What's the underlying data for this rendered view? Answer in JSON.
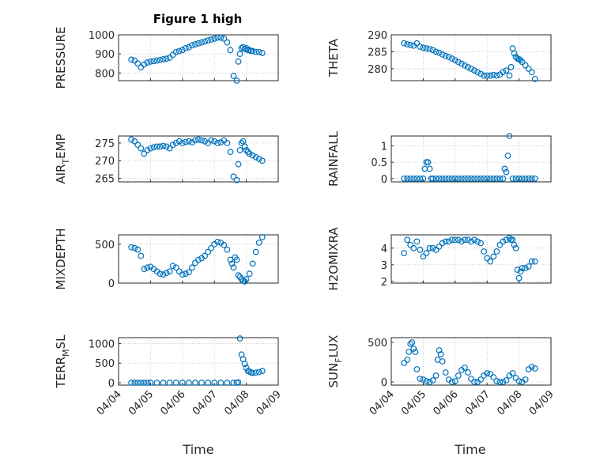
{
  "figure": {
    "title": "Figure 1 high",
    "xlabel": "Time"
  },
  "colors": {
    "marker": "#0072BD",
    "axis": "#262626",
    "grid": "#b0b0b0"
  },
  "x_ticks": [
    "04/04",
    "04/05",
    "04/06",
    "04/07",
    "04/08",
    "04/09"
  ],
  "chart_data": [
    {
      "type": "scatter",
      "ylabel": "PRESSURE",
      "ylim": [
        760,
        1000
      ],
      "yticks": [
        "800",
        "900",
        "1000"
      ],
      "ytick_values": [
        800,
        900,
        1000
      ],
      "grid": true,
      "x": [
        0.4,
        0.5,
        0.6,
        0.7,
        0.8,
        0.9,
        1.0,
        1.1,
        1.2,
        1.3,
        1.4,
        1.5,
        1.6,
        1.7,
        1.8,
        1.9,
        2.0,
        2.1,
        2.2,
        2.3,
        2.4,
        2.5,
        2.6,
        2.7,
        2.8,
        2.9,
        3.0,
        3.1,
        3.2,
        3.3,
        3.4,
        3.5,
        3.6,
        3.7,
        3.75,
        3.8,
        3.85,
        3.9,
        3.95,
        4.0,
        4.05,
        4.1,
        4.15,
        4.2,
        4.3,
        4.4,
        4.5
      ],
      "y": [
        870,
        865,
        850,
        830,
        845,
        855,
        860,
        862,
        865,
        868,
        872,
        875,
        880,
        895,
        910,
        915,
        920,
        930,
        935,
        945,
        950,
        955,
        960,
        965,
        970,
        975,
        980,
        985,
        985,
        980,
        960,
        920,
        785,
        760,
        860,
        900,
        930,
        935,
        925,
        930,
        920,
        920,
        915,
        915,
        910,
        910,
        905
      ]
    },
    {
      "type": "scatter",
      "ylabel": "THETA",
      "ylim": [
        276.5,
        290
      ],
      "yticks": [
        "280",
        "285",
        "290"
      ],
      "ytick_values": [
        280,
        285,
        290
      ],
      "grid": true,
      "x": [
        0.4,
        0.5,
        0.6,
        0.7,
        0.8,
        0.9,
        1.0,
        1.1,
        1.2,
        1.3,
        1.4,
        1.5,
        1.6,
        1.7,
        1.8,
        1.9,
        2.0,
        2.1,
        2.2,
        2.3,
        2.4,
        2.5,
        2.6,
        2.7,
        2.8,
        2.9,
        3.0,
        3.1,
        3.2,
        3.3,
        3.4,
        3.5,
        3.6,
        3.7,
        3.75,
        3.8,
        3.85,
        3.9,
        3.95,
        4.0,
        4.05,
        4.1,
        4.2,
        4.3,
        4.4,
        4.5
      ],
      "y": [
        287.5,
        287.2,
        287.0,
        286.8,
        287.5,
        286.5,
        286.2,
        286.0,
        285.8,
        285.5,
        285.0,
        284.7,
        284.2,
        283.8,
        283.5,
        283.0,
        282.5,
        282.0,
        281.5,
        281.0,
        280.5,
        280.0,
        279.5,
        279.0,
        278.5,
        278.0,
        278.0,
        278.0,
        278.2,
        278.0,
        278.3,
        279.0,
        279.5,
        278.0,
        280.5,
        286.0,
        284.5,
        283.5,
        283.0,
        282.8,
        282.5,
        282.0,
        281.0,
        280.0,
        279.0,
        277.0
      ]
    },
    {
      "type": "scatter",
      "ylabel": "AIR_TEMP",
      "ylim": [
        264,
        277
      ],
      "yticks": [
        "265",
        "270",
        "275"
      ],
      "ytick_values": [
        265,
        270,
        275
      ],
      "grid": true,
      "x": [
        0.4,
        0.5,
        0.6,
        0.7,
        0.8,
        0.9,
        1.0,
        1.1,
        1.2,
        1.3,
        1.4,
        1.5,
        1.6,
        1.7,
        1.8,
        1.9,
        2.0,
        2.1,
        2.2,
        2.3,
        2.4,
        2.5,
        2.6,
        2.7,
        2.8,
        2.9,
        3.0,
        3.1,
        3.2,
        3.3,
        3.4,
        3.5,
        3.6,
        3.7,
        3.75,
        3.8,
        3.85,
        3.9,
        3.95,
        4.0,
        4.05,
        4.1,
        4.2,
        4.3,
        4.4,
        4.5
      ],
      "y": [
        276.0,
        275.5,
        274.5,
        273.5,
        272.0,
        273.0,
        273.5,
        273.8,
        274.0,
        274.0,
        274.2,
        274.0,
        273.5,
        274.5,
        275.0,
        275.5,
        275.0,
        275.3,
        275.5,
        275.2,
        275.8,
        276.0,
        275.8,
        275.5,
        275.0,
        275.8,
        275.5,
        275.0,
        275.2,
        275.8,
        275.0,
        272.5,
        265.5,
        264.5,
        269.0,
        273.0,
        275.0,
        275.5,
        274.0,
        273.0,
        272.5,
        272.0,
        271.5,
        271.0,
        270.5,
        270.0
      ]
    },
    {
      "type": "scatter",
      "ylabel": "RAINFALL",
      "ylim": [
        -0.1,
        1.3
      ],
      "yticks": [
        "0",
        "0.5",
        "1"
      ],
      "ytick_values": [
        0,
        0.5,
        1
      ],
      "grid": true,
      "x": [
        0.4,
        0.5,
        0.6,
        0.7,
        0.8,
        0.9,
        1.0,
        1.05,
        1.1,
        1.15,
        1.2,
        1.25,
        1.3,
        1.4,
        1.5,
        1.6,
        1.7,
        1.8,
        1.9,
        2.0,
        2.1,
        2.2,
        2.3,
        2.4,
        2.5,
        2.6,
        2.7,
        2.8,
        2.9,
        3.0,
        3.1,
        3.2,
        3.3,
        3.4,
        3.5,
        3.55,
        3.6,
        3.65,
        3.7,
        3.8,
        3.9,
        4.0,
        4.1,
        4.2,
        4.3,
        4.4,
        4.5
      ],
      "y": [
        0,
        0,
        0,
        0,
        0,
        0,
        0,
        0.3,
        0.5,
        0.5,
        0.3,
        0,
        0,
        0,
        0,
        0,
        0,
        0,
        0,
        0,
        0,
        0,
        0,
        0,
        0,
        0,
        0,
        0,
        0,
        0,
        0,
        0,
        0,
        0,
        0,
        0.3,
        0.2,
        0.7,
        1.3,
        0,
        0,
        0,
        0,
        0,
        0,
        0,
        0
      ]
    },
    {
      "type": "scatter",
      "ylabel": "MIXDEPTH",
      "ylim": [
        0,
        620
      ],
      "yticks": [
        "0",
        "500"
      ],
      "ytick_values": [
        0,
        500
      ],
      "grid": true,
      "x": [
        0.4,
        0.5,
        0.6,
        0.7,
        0.8,
        0.9,
        1.0,
        1.1,
        1.2,
        1.3,
        1.4,
        1.5,
        1.6,
        1.7,
        1.8,
        1.9,
        2.0,
        2.1,
        2.2,
        2.3,
        2.4,
        2.5,
        2.6,
        2.7,
        2.8,
        2.9,
        3.0,
        3.1,
        3.2,
        3.3,
        3.4,
        3.5,
        3.55,
        3.6,
        3.65,
        3.7,
        3.75,
        3.8,
        3.85,
        3.9,
        3.95,
        4.0,
        4.1,
        4.2,
        4.3,
        4.4,
        4.5
      ],
      "y": [
        460,
        450,
        430,
        350,
        180,
        200,
        210,
        180,
        150,
        120,
        110,
        130,
        150,
        220,
        200,
        150,
        110,
        120,
        140,
        200,
        260,
        300,
        320,
        350,
        400,
        450,
        500,
        530,
        520,
        490,
        430,
        300,
        250,
        200,
        330,
        300,
        100,
        80,
        50,
        30,
        20,
        50,
        120,
        250,
        400,
        520,
        590
      ]
    },
    {
      "type": "scatter",
      "ylabel": "H2OMIXRA",
      "ylim": [
        1.9,
        4.8
      ],
      "yticks": [
        "2",
        "3",
        "4"
      ],
      "ytick_values": [
        2,
        3,
        4
      ],
      "grid": true,
      "x": [
        0.4,
        0.5,
        0.6,
        0.7,
        0.8,
        0.9,
        1.0,
        1.1,
        1.2,
        1.3,
        1.4,
        1.5,
        1.6,
        1.7,
        1.8,
        1.9,
        2.0,
        2.1,
        2.2,
        2.3,
        2.4,
        2.5,
        2.6,
        2.7,
        2.8,
        2.9,
        3.0,
        3.1,
        3.2,
        3.3,
        3.4,
        3.5,
        3.6,
        3.7,
        3.75,
        3.8,
        3.85,
        3.9,
        3.95,
        4.0,
        4.05,
        4.1,
        4.2,
        4.3,
        4.4,
        4.5
      ],
      "y": [
        3.7,
        4.5,
        4.2,
        4.0,
        4.4,
        3.9,
        3.5,
        3.7,
        4.0,
        4.0,
        3.9,
        4.1,
        4.3,
        4.4,
        4.4,
        4.5,
        4.5,
        4.5,
        4.4,
        4.5,
        4.5,
        4.4,
        4.5,
        4.4,
        4.3,
        3.8,
        3.4,
        3.2,
        3.5,
        3.8,
        4.2,
        4.4,
        4.5,
        4.6,
        4.5,
        4.5,
        4.2,
        4.0,
        2.7,
        2.2,
        2.6,
        2.8,
        2.8,
        2.9,
        3.2,
        3.2
      ]
    },
    {
      "type": "scatter",
      "ylabel": "TERR_MSL",
      "ylim": [
        -60,
        1150
      ],
      "yticks": [
        "0",
        "500",
        "1000"
      ],
      "ytick_values": [
        0,
        500,
        1000
      ],
      "grid": true,
      "x": [
        0.4,
        0.5,
        0.6,
        0.7,
        0.8,
        0.9,
        1.0,
        1.2,
        1.4,
        1.6,
        1.8,
        2.0,
        2.2,
        2.4,
        2.6,
        2.8,
        3.0,
        3.2,
        3.4,
        3.6,
        3.7,
        3.75,
        3.8,
        3.85,
        3.9,
        3.95,
        4.0,
        4.05,
        4.1,
        4.15,
        4.2,
        4.3,
        4.4,
        4.5
      ],
      "y": [
        0,
        0,
        0,
        0,
        0,
        0,
        0,
        0,
        0,
        0,
        0,
        0,
        0,
        0,
        0,
        0,
        0,
        0,
        0,
        0,
        0,
        10,
        1130,
        720,
        600,
        480,
        380,
        300,
        280,
        260,
        250,
        260,
        270,
        300
      ]
    },
    {
      "type": "scatter",
      "ylabel": "SUN_FLUX",
      "ylim": [
        -40,
        560
      ],
      "yticks": [
        "0",
        "500"
      ],
      "ytick_values": [
        0,
        500
      ],
      "grid": true,
      "x": [
        0.4,
        0.5,
        0.55,
        0.6,
        0.65,
        0.7,
        0.75,
        0.8,
        0.9,
        1.0,
        1.1,
        1.2,
        1.3,
        1.4,
        1.45,
        1.5,
        1.55,
        1.6,
        1.7,
        1.8,
        1.9,
        2.0,
        2.1,
        2.2,
        2.3,
        2.4,
        2.5,
        2.6,
        2.7,
        2.8,
        2.9,
        3.0,
        3.1,
        3.2,
        3.3,
        3.4,
        3.5,
        3.6,
        3.7,
        3.8,
        3.9,
        4.0,
        4.1,
        4.2,
        4.3,
        4.4,
        4.5
      ],
      "y": [
        240,
        280,
        380,
        480,
        500,
        420,
        380,
        160,
        40,
        30,
        10,
        0,
        20,
        80,
        280,
        400,
        350,
        260,
        120,
        30,
        0,
        10,
        80,
        150,
        180,
        120,
        40,
        0,
        0,
        30,
        80,
        110,
        100,
        60,
        10,
        0,
        0,
        20,
        80,
        110,
        50,
        10,
        0,
        30,
        160,
        190,
        170
      ]
    }
  ]
}
